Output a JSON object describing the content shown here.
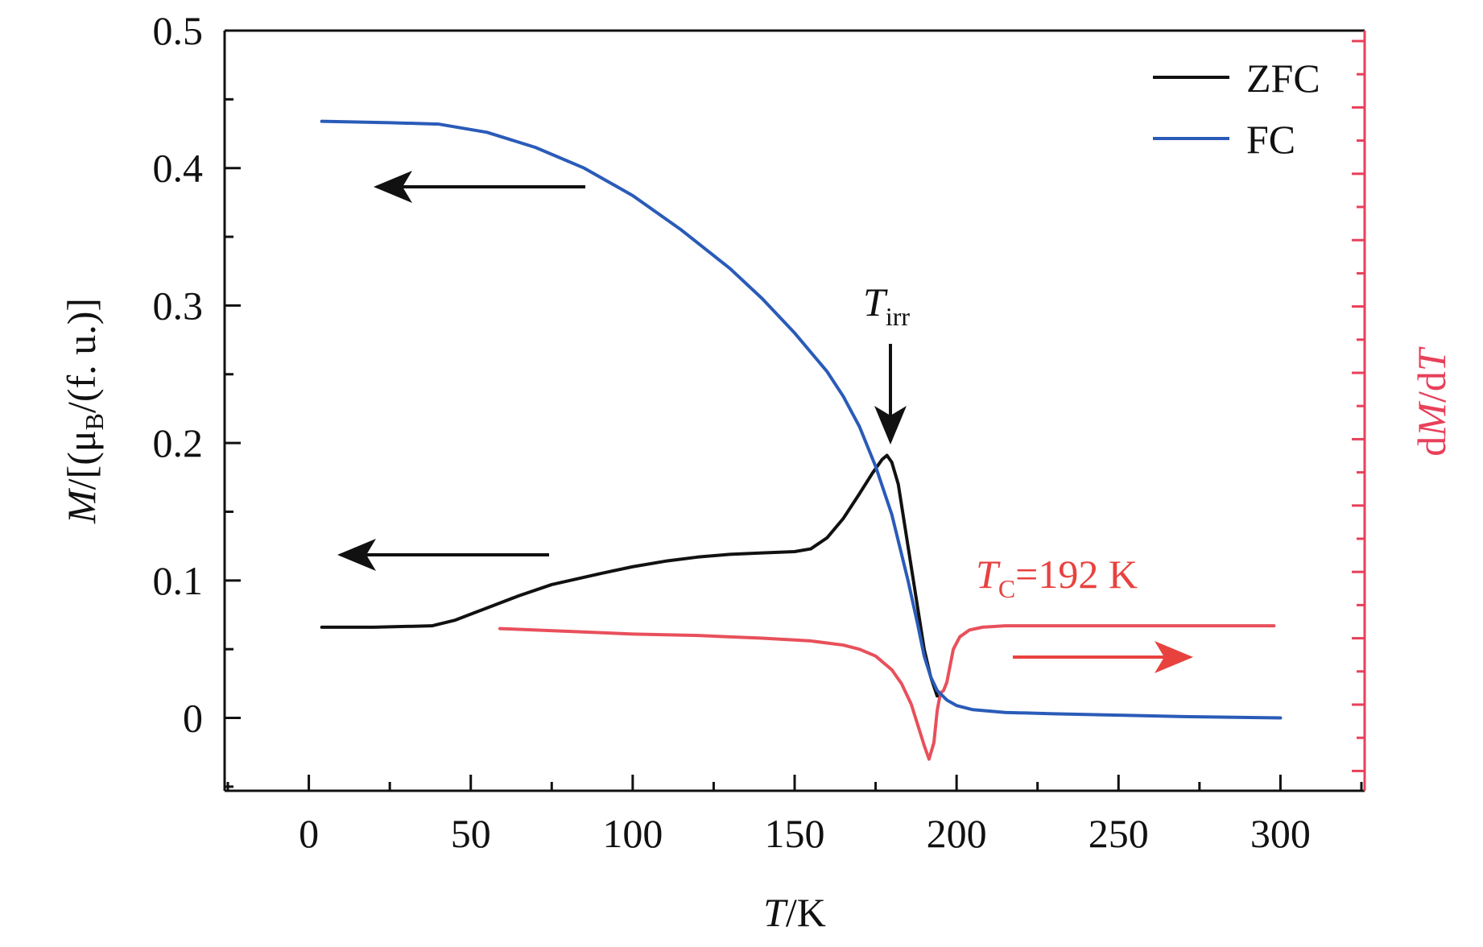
{
  "chart_data": {
    "type": "line",
    "title": "",
    "xlabel": {
      "italic": "T",
      "rest": "/K"
    },
    "ylabel_left": {
      "italic": "M",
      "pre": "/[(μ",
      "sub": "B",
      "post": "/(f. u.)]"
    },
    "ylabel_right": {
      "pre": "d",
      "italic1": "M",
      "mid": "/d",
      "italic2": "T"
    },
    "xlim": [
      -26,
      326
    ],
    "ylim": [
      -0.053,
      0.5
    ],
    "right_ylim": [
      -0.053,
      0.5
    ],
    "x_ticks": [
      0,
      50,
      100,
      150,
      200,
      250,
      300
    ],
    "y_ticks": [
      0,
      0.1,
      0.2,
      0.3,
      0.4,
      0.5
    ],
    "x_tick_labels": [
      "0",
      "50",
      "100",
      "150",
      "200",
      "250",
      "300"
    ],
    "y_tick_labels": [
      "0",
      "0.1",
      "0.2",
      "0.3",
      "0.4",
      "0.5"
    ],
    "right_axis_labels_shown": false,
    "grid": false,
    "legend": {
      "position": "top-right"
    },
    "series": [
      {
        "name": "ZFC",
        "color": "#111111",
        "axis": "left",
        "x": [
          4,
          20,
          38,
          45,
          55,
          65,
          75,
          90,
          100,
          110,
          120,
          130,
          140,
          150,
          155,
          160,
          165,
          170,
          174,
          177,
          178.5,
          180,
          182,
          185,
          188,
          190,
          192,
          194
        ],
        "y": [
          0.066,
          0.066,
          0.067,
          0.071,
          0.08,
          0.089,
          0.097,
          0.105,
          0.11,
          0.114,
          0.117,
          0.119,
          0.12,
          0.121,
          0.123,
          0.131,
          0.145,
          0.163,
          0.178,
          0.188,
          0.191,
          0.186,
          0.17,
          0.125,
          0.08,
          0.05,
          0.03,
          0.016
        ]
      },
      {
        "name": "FC",
        "color": "#2a5bb8",
        "axis": "left",
        "x": [
          4,
          25,
          40,
          55,
          70,
          85,
          100,
          115,
          130,
          140,
          150,
          160,
          165,
          170,
          175,
          180,
          185,
          188,
          190,
          192,
          194,
          197,
          200,
          205,
          215,
          230,
          250,
          270,
          300
        ],
        "y": [
          0.434,
          0.433,
          0.432,
          0.426,
          0.415,
          0.4,
          0.38,
          0.355,
          0.327,
          0.305,
          0.28,
          0.252,
          0.234,
          0.212,
          0.183,
          0.148,
          0.1,
          0.068,
          0.045,
          0.03,
          0.02,
          0.013,
          0.009,
          0.006,
          0.004,
          0.003,
          0.002,
          0.001,
          0.0
        ]
      },
      {
        "name": "",
        "color": "#e8505b",
        "axis": "right",
        "x": [
          59,
          80,
          100,
          120,
          140,
          155,
          165,
          170,
          175,
          180,
          183,
          186,
          188,
          190,
          191.5,
          193,
          194,
          195,
          196,
          197,
          198,
          199,
          201,
          204,
          208,
          215,
          240,
          270,
          298
        ],
        "y": [
          0.065,
          0.063,
          0.061,
          0.06,
          0.058,
          0.056,
          0.053,
          0.05,
          0.045,
          0.035,
          0.025,
          0.01,
          -0.005,
          -0.02,
          -0.03,
          -0.018,
          0.005,
          0.018,
          0.02,
          0.026,
          0.038,
          0.05,
          0.059,
          0.064,
          0.066,
          0.067,
          0.067,
          0.067,
          0.067
        ]
      }
    ],
    "annotations": {
      "t_irr": {
        "base": "T",
        "sub": "irr",
        "color": "#111111",
        "arrow_x": 180
      },
      "t_c": {
        "base": "T",
        "sub": "C",
        "rest": "=192 K",
        "color": "#e8423f"
      },
      "arrows": [
        {
          "direction": "left",
          "color": "#111111",
          "series": "FC"
        },
        {
          "direction": "left",
          "color": "#111111",
          "series": "ZFC"
        },
        {
          "direction": "right",
          "color": "#e8423f",
          "series": "dM/dT"
        }
      ]
    }
  }
}
